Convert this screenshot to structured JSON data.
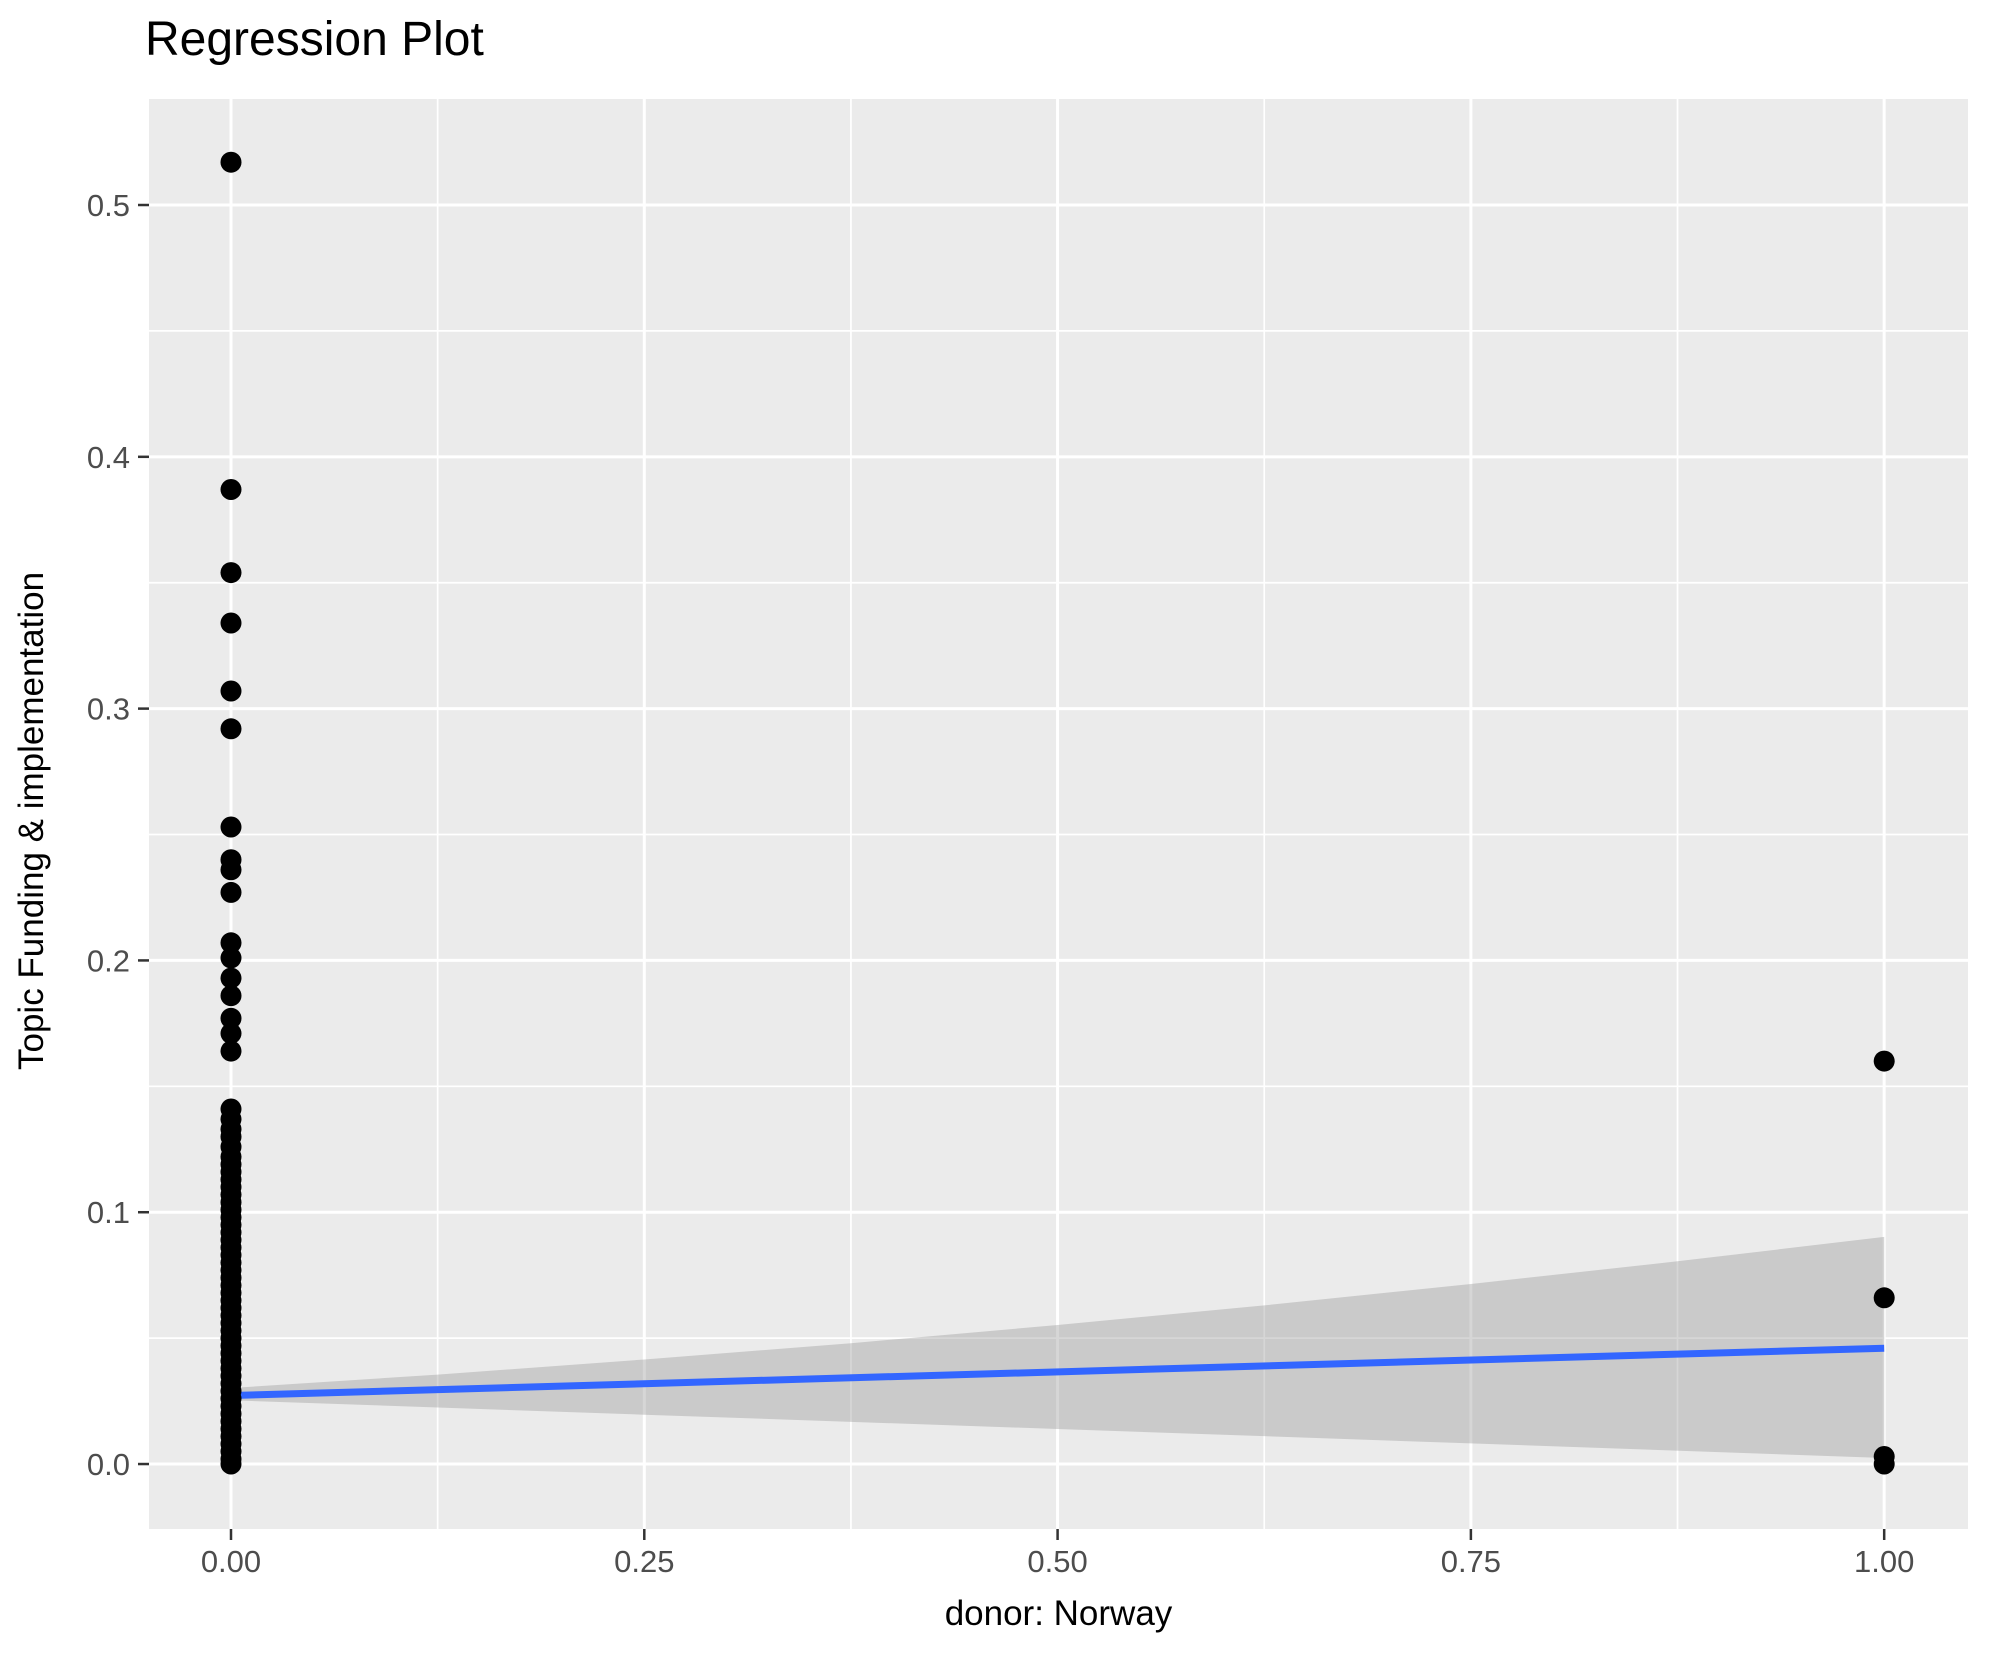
{
  "chart_data": {
    "type": "scatter",
    "title": "Regression Plot",
    "xlabel": "donor: Norway",
    "ylabel": "Topic Funding & implementation",
    "xlim": [
      -0.0496,
      1.0507
    ],
    "ylim": [
      -0.0258,
      0.5421
    ],
    "grid": true,
    "legend": "none",
    "colors": {
      "panel_bg": "#EBEBEB",
      "grid": "#FFFFFF",
      "point": "#000000",
      "regression_line": "#3366FF",
      "band_fill": "#999999",
      "band_opacity": 0.4,
      "tick_label": "#4D4D4D",
      "tick_mark": "#333333",
      "axis_title": "#000000",
      "title": "#000000"
    },
    "x_ticks": [
      {
        "value": 0.0,
        "label": "0.00"
      },
      {
        "value": 0.25,
        "label": "0.25"
      },
      {
        "value": 0.5,
        "label": "0.50"
      },
      {
        "value": 0.75,
        "label": "0.75"
      },
      {
        "value": 1.0,
        "label": "1.00"
      }
    ],
    "y_ticks": [
      {
        "value": 0.0,
        "label": "0.0"
      },
      {
        "value": 0.1,
        "label": "0.1"
      },
      {
        "value": 0.2,
        "label": "0.2"
      },
      {
        "value": 0.3,
        "label": "0.3"
      },
      {
        "value": 0.4,
        "label": "0.4"
      },
      {
        "value": 0.5,
        "label": "0.5"
      }
    ],
    "x_minor_ticks": [
      0.125,
      0.375,
      0.625,
      0.875
    ],
    "y_minor_ticks": [
      0.05,
      0.15,
      0.25,
      0.35,
      0.45
    ],
    "regression_line": {
      "x": [
        0,
        1
      ],
      "y": [
        0.0272,
        0.046
      ]
    },
    "confidence_band": {
      "upper": [
        [
          0,
          0.0302
        ],
        [
          0.125,
          0.0355
        ],
        [
          0.25,
          0.0415
        ],
        [
          0.375,
          0.048
        ],
        [
          0.5,
          0.0552
        ],
        [
          0.625,
          0.063
        ],
        [
          0.75,
          0.0715
        ],
        [
          0.875,
          0.0805
        ],
        [
          1,
          0.0902
        ]
      ],
      "lower": [
        [
          0,
          0.0253
        ],
        [
          0.25,
          0.0196
        ],
        [
          0.5,
          0.0139
        ],
        [
          0.75,
          0.0082
        ],
        [
          1,
          0.0024
        ]
      ]
    },
    "points": [
      [
        0,
        0.517
      ],
      [
        0,
        0.387
      ],
      [
        0,
        0.354
      ],
      [
        0,
        0.334
      ],
      [
        0,
        0.307
      ],
      [
        0,
        0.292
      ],
      [
        0,
        0.253
      ],
      [
        0,
        0.24
      ],
      [
        0,
        0.236
      ],
      [
        0,
        0.227
      ],
      [
        0,
        0.207
      ],
      [
        0,
        0.201
      ],
      [
        0,
        0.193
      ],
      [
        0,
        0.186
      ],
      [
        0,
        0.177
      ],
      [
        0,
        0.171
      ],
      [
        0,
        0.164
      ],
      [
        0,
        0.141
      ],
      [
        0,
        0.137
      ],
      [
        0,
        0.133
      ],
      [
        0,
        0.13
      ],
      [
        0,
        0.126
      ],
      [
        0,
        0.122
      ],
      [
        0,
        0.119
      ],
      [
        0,
        0.116
      ],
      [
        0,
        0.113
      ],
      [
        0,
        0.11
      ],
      [
        0,
        0.107
      ],
      [
        0,
        0.104
      ],
      [
        0,
        0.101
      ],
      [
        0,
        0.098
      ],
      [
        0,
        0.095
      ],
      [
        0,
        0.092
      ],
      [
        0,
        0.089
      ],
      [
        0,
        0.086
      ],
      [
        0,
        0.083
      ],
      [
        0,
        0.08
      ],
      [
        0,
        0.077
      ],
      [
        0,
        0.074
      ],
      [
        0,
        0.071
      ],
      [
        0,
        0.068
      ],
      [
        0,
        0.065
      ],
      [
        0,
        0.062
      ],
      [
        0,
        0.059
      ],
      [
        0,
        0.056
      ],
      [
        0,
        0.053
      ],
      [
        0,
        0.05
      ],
      [
        0,
        0.047
      ],
      [
        0,
        0.044
      ],
      [
        0,
        0.041
      ],
      [
        0,
        0.038
      ],
      [
        0,
        0.035
      ],
      [
        0,
        0.032
      ],
      [
        0,
        0.029
      ],
      [
        0,
        0.026
      ],
      [
        0,
        0.023
      ],
      [
        0,
        0.02
      ],
      [
        0,
        0.017
      ],
      [
        0,
        0.014
      ],
      [
        0,
        0.011
      ],
      [
        0,
        0.008
      ],
      [
        0,
        0.005
      ],
      [
        0,
        0.002
      ],
      [
        0,
        0.0
      ],
      [
        1,
        0.16
      ],
      [
        1,
        0.066
      ],
      [
        1,
        0.003
      ],
      [
        1,
        0.0
      ]
    ]
  }
}
